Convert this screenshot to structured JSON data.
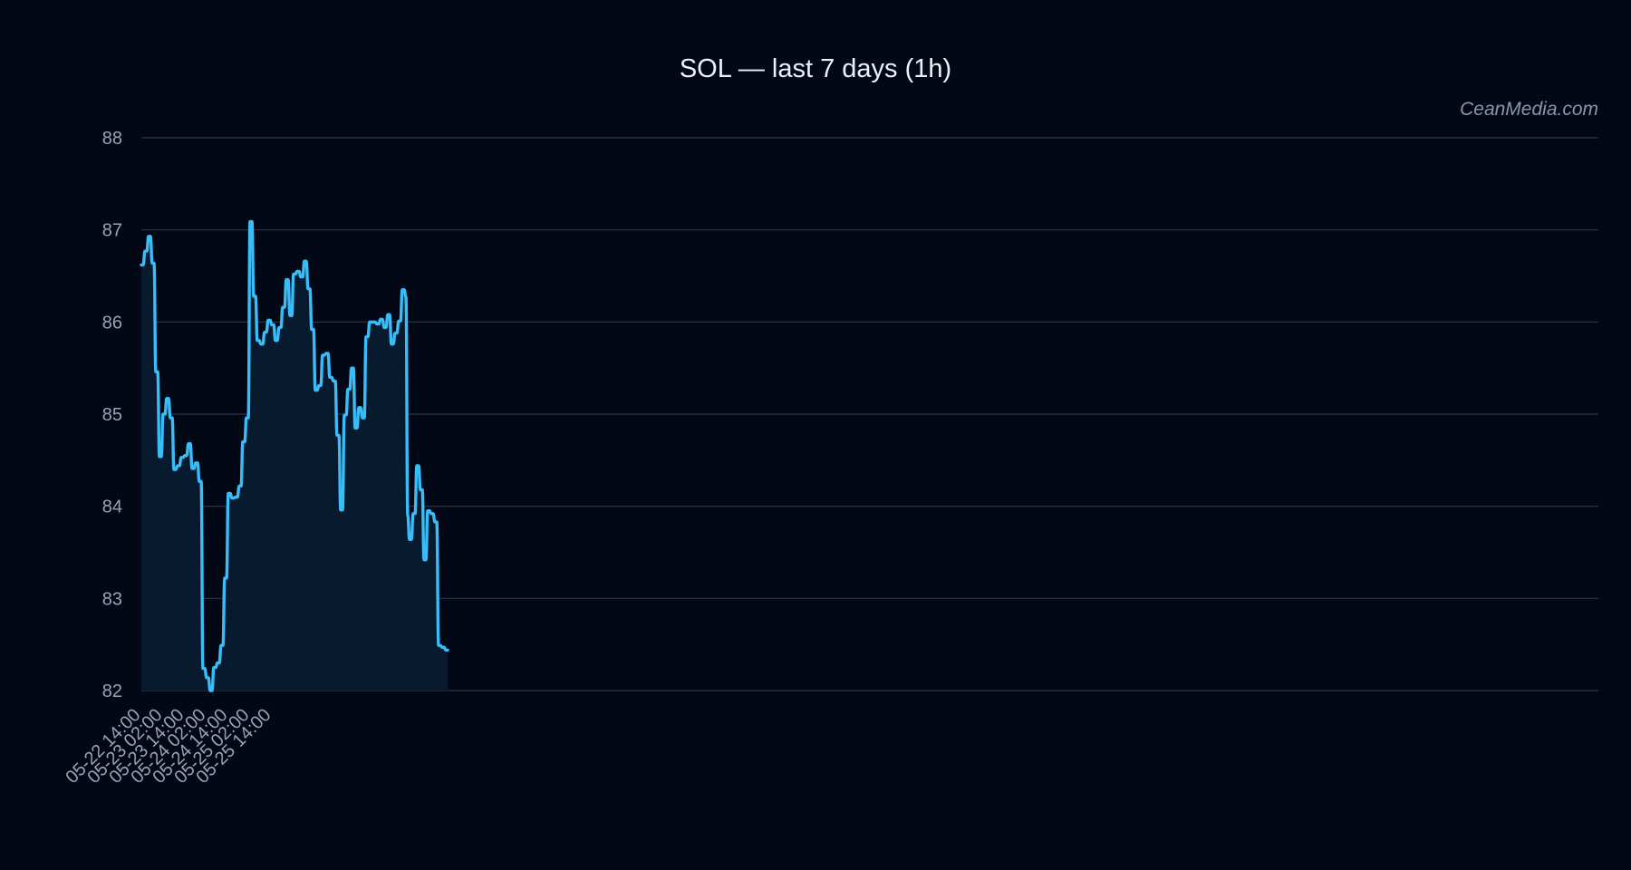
{
  "watermark": "CeanMedia.com",
  "chart_data": {
    "type": "area",
    "title": "SOL — last 7 days (1h)",
    "xlabel": "",
    "ylabel": "",
    "x_start": "05-22 14:00",
    "x_step": "1h",
    "xticks": [
      "05-22 14:00",
      "05-23 02:00",
      "05-23 14:00",
      "05-24 02:00",
      "05-24 14:00",
      "05-25 02:00",
      "05-25 14:00"
    ],
    "yticks": [
      82,
      83,
      84,
      85,
      86,
      87,
      88
    ],
    "ylim": [
      82,
      88
    ],
    "grid": true,
    "legend": "none",
    "colors": {
      "background": "#030817",
      "line": "#38bdf8",
      "fill": "#081a2e",
      "grid": "#2b3649"
    },
    "series": [
      {
        "values": [
          86.62,
          86.62,
          86.77,
          86.77,
          86.93,
          86.93,
          86.64,
          86.64,
          85.46,
          85.46,
          84.54,
          84.54,
          85.0,
          85.0,
          85.17,
          85.17,
          84.96,
          84.96,
          84.4,
          84.4,
          84.44,
          84.44,
          84.53,
          84.53,
          84.55,
          84.55,
          84.68,
          84.68,
          84.41,
          84.41,
          84.47,
          84.47,
          84.27,
          84.27,
          82.24,
          82.24,
          82.14,
          82.14,
          82.0,
          82.0,
          82.25,
          82.25,
          82.3,
          82.3,
          82.49,
          82.49,
          83.22,
          83.22,
          84.14,
          84.14,
          84.09,
          84.09,
          84.1,
          84.1,
          84.22,
          84.22,
          84.7,
          84.7,
          84.96,
          84.96,
          87.09,
          87.09,
          86.28,
          86.28,
          85.8,
          85.8,
          85.76,
          85.76,
          85.89,
          85.89,
          86.02,
          86.02,
          85.97,
          85.97,
          85.8,
          85.8,
          85.94,
          85.94,
          86.16,
          86.16,
          86.46,
          86.46,
          86.07,
          86.07,
          86.52,
          86.52,
          86.55,
          86.55,
          86.49,
          86.49,
          86.66,
          86.66,
          86.36,
          86.36,
          85.92,
          85.92,
          85.26,
          85.26,
          85.31,
          85.31,
          85.64,
          85.64,
          85.66,
          85.66,
          85.4,
          85.4,
          85.36,
          85.36,
          84.77,
          84.77,
          83.96,
          83.96,
          84.99,
          84.99,
          85.27,
          85.27,
          85.5,
          85.5,
          84.85,
          84.85,
          85.07,
          85.07,
          84.96,
          84.96,
          85.84,
          85.84,
          86.0,
          86.0,
          86.0,
          86.0,
          85.98,
          85.98,
          86.03,
          86.03,
          85.94,
          85.94,
          86.08,
          86.08,
          85.76,
          85.76,
          85.88,
          85.88,
          86.01,
          86.01,
          86.35,
          86.35,
          86.27,
          83.9,
          83.64,
          83.64,
          83.92,
          83.92,
          84.44,
          84.44,
          84.18,
          84.18,
          83.42,
          83.42,
          83.95,
          83.95,
          83.92,
          83.92,
          83.83,
          83.83,
          82.49,
          82.49,
          82.47,
          82.47,
          82.44,
          82.44
        ]
      }
    ]
  }
}
